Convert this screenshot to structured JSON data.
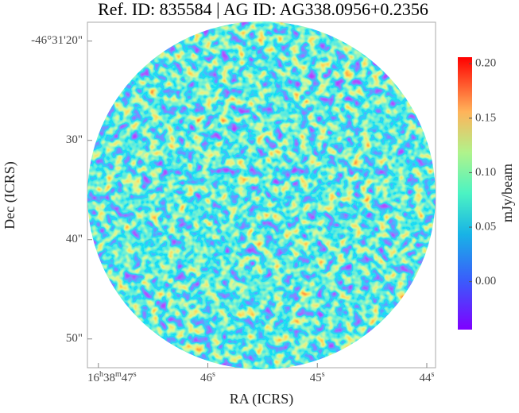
{
  "chart_data": {
    "type": "image",
    "title": "Ref. ID: 835584 | AG ID: AG338.0956+0.2356",
    "xlabel": "RA (ICRS)",
    "ylabel": "Dec (ICRS)",
    "xlim": [
      47.1,
      43.92
    ],
    "xticks": [
      {
        "value": 47,
        "label": "16h38m47s"
      },
      {
        "value": 46,
        "label": "46s"
      },
      {
        "value": 45,
        "label": "45s"
      },
      {
        "value": 44,
        "label": "44s"
      }
    ],
    "ylim": [
      52.9,
      18.1
    ],
    "yticks": [
      {
        "value": 20,
        "label": "-46°31'20\""
      },
      {
        "value": 30,
        "label": "30\""
      },
      {
        "value": 40,
        "label": "40\""
      },
      {
        "value": 50,
        "label": "50\""
      }
    ],
    "colorbar": {
      "label": "mJy/beam",
      "lim": [
        -0.044,
        0.206
      ],
      "ticks": [
        {
          "value": 0,
          "label": "0.00"
        },
        0.05,
        {
          "value": 0.1,
          "label": "0.10"
        },
        0.15,
        {
          "value": 0.2,
          "label": "0.20"
        }
      ]
    }
  }
}
